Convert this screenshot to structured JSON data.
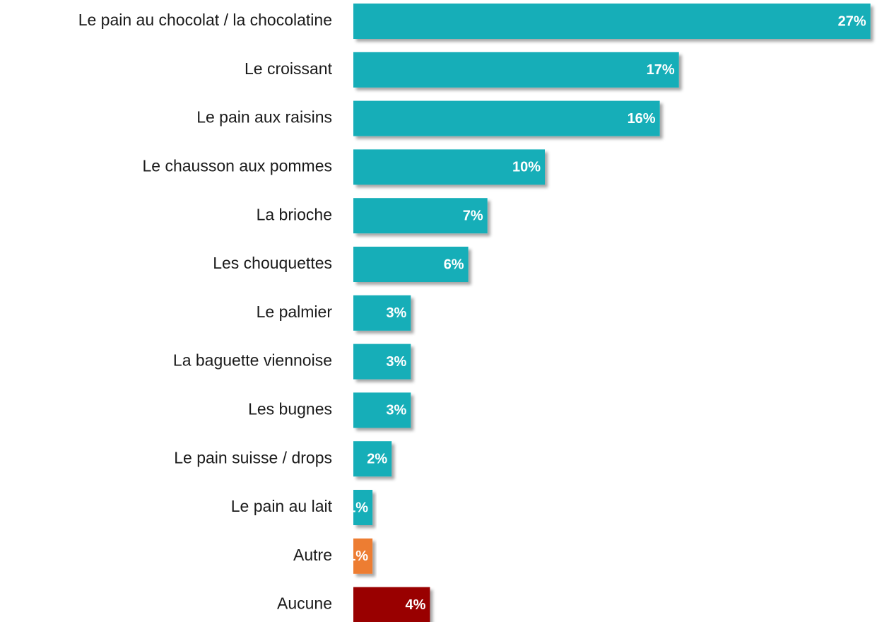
{
  "chart_data": {
    "type": "bar",
    "orientation": "horizontal",
    "categories": [
      "Le pain au chocolat / la chocolatine",
      "Le croissant",
      "Le pain aux raisins",
      "Le chausson aux pommes",
      "La brioche",
      "Les chouquettes",
      "Le palmier",
      "La baguette viennoise",
      "Les bugnes",
      "Le pain suisse / drops",
      "Le pain au lait",
      "Autre",
      "Aucune"
    ],
    "values": [
      27,
      17,
      16,
      10,
      7,
      6,
      3,
      3,
      3,
      2,
      1,
      1,
      4
    ],
    "value_labels": [
      "27%",
      "17%",
      "16%",
      "10%",
      "7%",
      "6%",
      "3%",
      "3%",
      "3%",
      "2%",
      "1%",
      "1%",
      "4%"
    ],
    "colors": [
      "#17aeb8",
      "#17aeb8",
      "#17aeb8",
      "#17aeb8",
      "#17aeb8",
      "#17aeb8",
      "#17aeb8",
      "#17aeb8",
      "#17aeb8",
      "#17aeb8",
      "#17aeb8",
      "#ed7d31",
      "#990000"
    ]
  }
}
